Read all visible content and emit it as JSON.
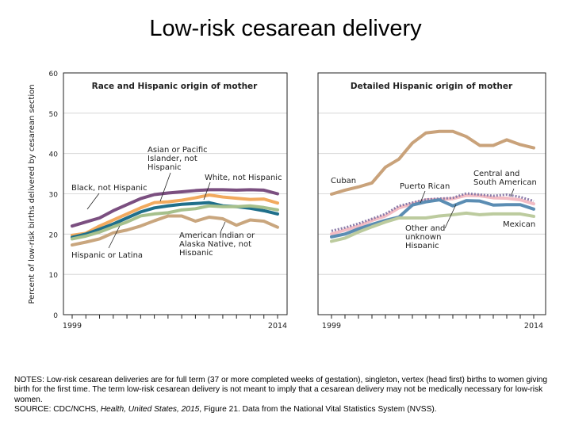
{
  "title": "Low-risk cesarean delivery",
  "notes": {
    "line1": "NOTES: Low-risk cesarean deliveries are for full term (37 or more completed weeks of gestation), singleton, vertex (head first) births to women giving birth for the first time. The term low-risk cesarean delivery is not meant to imply that a cesarean delivery may not be medically necessary for low-risk women.",
    "source_prefix": "SOURCE: CDC/NCHS, ",
    "source_italic": "Health, United States, 2015",
    "source_suffix": ", Figure 21. Data from the National Vital Statistics System (NVSS)."
  },
  "chart_data": [
    {
      "type": "line",
      "title": "Race and Hispanic origin of mother",
      "ylabel": "Percent of low-risk births delivered by cesarean section",
      "ylim": [
        0,
        60
      ],
      "yticks": [
        0,
        10,
        20,
        30,
        40,
        50,
        60
      ],
      "xlim": [
        1999,
        2014
      ],
      "xtick_labels": [
        "1999",
        "2014"
      ],
      "grid": true,
      "x": [
        1999,
        2000,
        2001,
        2002,
        2003,
        2004,
        2005,
        2006,
        2007,
        2008,
        2009,
        2010,
        2011,
        2012,
        2013,
        2014
      ],
      "series": [
        {
          "name": "Black, not Hispanic",
          "color": "#7b4f80",
          "values": [
            22,
            23,
            24,
            25.8,
            27.3,
            28.8,
            29.8,
            30.2,
            30.5,
            30.8,
            31,
            31,
            30.9,
            31,
            30.9,
            30
          ]
        },
        {
          "name": "Asian or Pacific Islander, not Hispanic",
          "color": "#f2aa5e",
          "values": [
            19.7,
            20.2,
            22,
            23.5,
            25,
            26.5,
            27.8,
            28,
            28.4,
            29,
            29.7,
            29.2,
            28.9,
            28.6,
            28.7,
            27.7
          ]
        },
        {
          "name": "White, not Hispanic",
          "color": "#1f6f8b",
          "values": [
            19.2,
            20,
            21.2,
            22.5,
            24,
            25.5,
            26.5,
            27,
            27.4,
            27.6,
            27.8,
            27,
            26.8,
            26.4,
            25.8,
            25
          ]
        },
        {
          "name": "Hispanic or Latina",
          "color": "#a6c08c",
          "values": [
            18.8,
            19.5,
            20.5,
            21.8,
            23,
            24.5,
            25,
            25.3,
            26,
            26.3,
            27,
            26.8,
            26.8,
            27,
            26.6,
            26
          ]
        },
        {
          "name": "American Indian or Alaska Native, not Hispanic",
          "color": "#c9a67e",
          "values": [
            17.3,
            18,
            18.8,
            20.3,
            21,
            22,
            23.3,
            24.5,
            24.5,
            23.2,
            24.2,
            23.8,
            22.2,
            23.5,
            23.2,
            21.7
          ]
        }
      ]
    },
    {
      "type": "line",
      "title": "Detailed Hispanic origin of mother",
      "ylim": [
        0,
        60
      ],
      "xlim": [
        1999,
        2014
      ],
      "xtick_labels": [
        "1999",
        "2014"
      ],
      "grid": true,
      "x": [
        1999,
        2000,
        2001,
        2002,
        2003,
        2004,
        2005,
        2006,
        2007,
        2008,
        2009,
        2010,
        2011,
        2012,
        2013,
        2014
      ],
      "series": [
        {
          "name": "Cuban",
          "color": "#c9a27a",
          "values": [
            29.9,
            30.9,
            31.7,
            32.7,
            36.6,
            38.6,
            42.6,
            45.1,
            45.5,
            45.5,
            44.2,
            42,
            42,
            43.4,
            42.2,
            41.4
          ]
        },
        {
          "name": "Puerto Rican",
          "color": "#f3bcc4",
          "values": [
            20,
            21,
            22,
            23.4,
            24.5,
            26.5,
            27.5,
            28.5,
            28.6,
            28.8,
            29.6,
            29.5,
            29,
            28.9,
            28.5,
            27.5
          ]
        },
        {
          "name": "Central and South American",
          "color": "#8a7aa8",
          "dashed": true,
          "values": [
            20.8,
            21.6,
            22.6,
            23.8,
            25,
            27,
            27.8,
            28.6,
            28.8,
            29,
            30.1,
            29.8,
            29.5,
            29.8,
            29.2,
            28.2
          ]
        },
        {
          "name": "Other and unknown Hispanic",
          "color": "#5b8db3",
          "values": [
            19.3,
            20,
            21.3,
            22.4,
            23.4,
            24.2,
            27.2,
            28,
            28.5,
            27,
            28.3,
            28.2,
            27.2,
            27.3,
            27.3,
            26.2
          ]
        },
        {
          "name": "Mexican",
          "color": "#bccb9e",
          "values": [
            18.2,
            19,
            20.5,
            21.8,
            23,
            24,
            24,
            24,
            24.5,
            24.8,
            25.2,
            24.8,
            25,
            25,
            25,
            24.4
          ]
        }
      ]
    }
  ]
}
